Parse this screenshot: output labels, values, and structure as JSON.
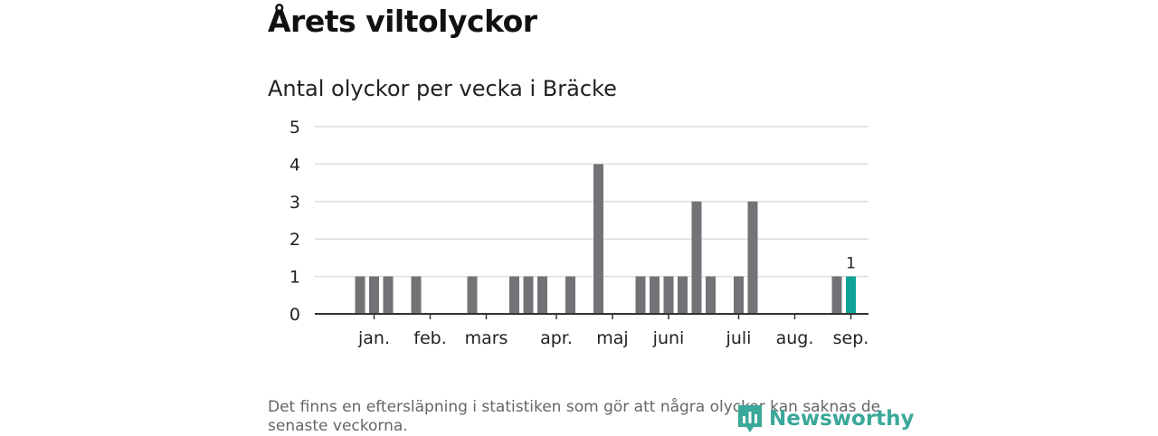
{
  "title": "Årets viltolyckor",
  "subtitle": "Antal olyckor per vecka i Bräcke",
  "footnote": "Det finns en eftersläpning i statistiken som gör att några olyckor kan saknas de senaste veckorna.",
  "brand": {
    "name": "Newsworthy",
    "color": "#3aa89a"
  },
  "colors": {
    "bar": "#737276",
    "highlight": "#0fa297",
    "grid": "#dddddd",
    "axis": "#333333"
  },
  "chart_data": {
    "type": "bar",
    "title": "Antal olyckor per vecka i Bräcke",
    "xlabel": "",
    "ylabel": "",
    "ylim": [
      0,
      5
    ],
    "yticks": [
      0,
      1,
      2,
      3,
      4,
      5
    ],
    "grid": true,
    "week_start": 1,
    "values": [
      0,
      1,
      1,
      1,
      0,
      1,
      0,
      0,
      0,
      1,
      0,
      0,
      1,
      1,
      1,
      0,
      1,
      0,
      4,
      0,
      0,
      1,
      1,
      1,
      1,
      3,
      1,
      0,
      1,
      3,
      0,
      0,
      0,
      0,
      0,
      1,
      1
    ],
    "highlight_index": 36,
    "highlight_label": "1",
    "month_labels": [
      {
        "label": "jan.",
        "week": 3
      },
      {
        "label": "feb.",
        "week": 7
      },
      {
        "label": "mars",
        "week": 11
      },
      {
        "label": "apr.",
        "week": 16
      },
      {
        "label": "maj",
        "week": 20
      },
      {
        "label": "juni",
        "week": 24
      },
      {
        "label": "juli",
        "week": 29
      },
      {
        "label": "aug.",
        "week": 33
      },
      {
        "label": "sep.",
        "week": 37
      }
    ]
  }
}
